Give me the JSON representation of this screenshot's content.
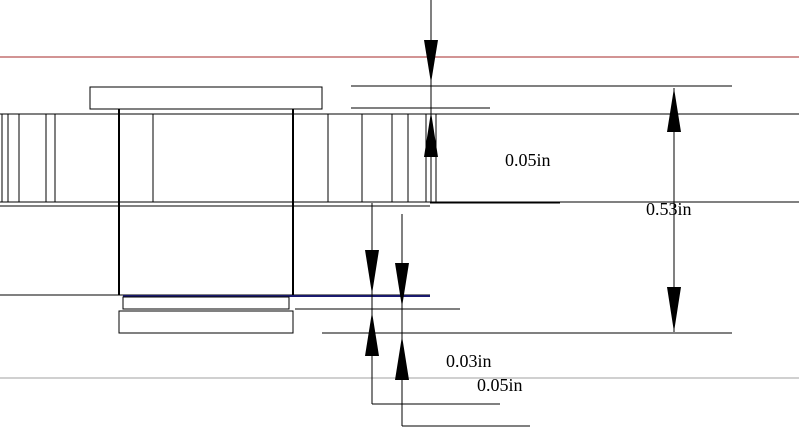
{
  "dimensions": {
    "top_gap": "0.05in",
    "overall_height": "0.53in",
    "lower_gap_a": "0.03in",
    "lower_gap_b": "0.05in"
  },
  "colors": {
    "background": "#ffffff",
    "line": "#000000",
    "reference_line_red": "#a52a2a",
    "reference_line_gray": "#a0a0a0",
    "highlight_line_navy": "#1a1a6e"
  }
}
